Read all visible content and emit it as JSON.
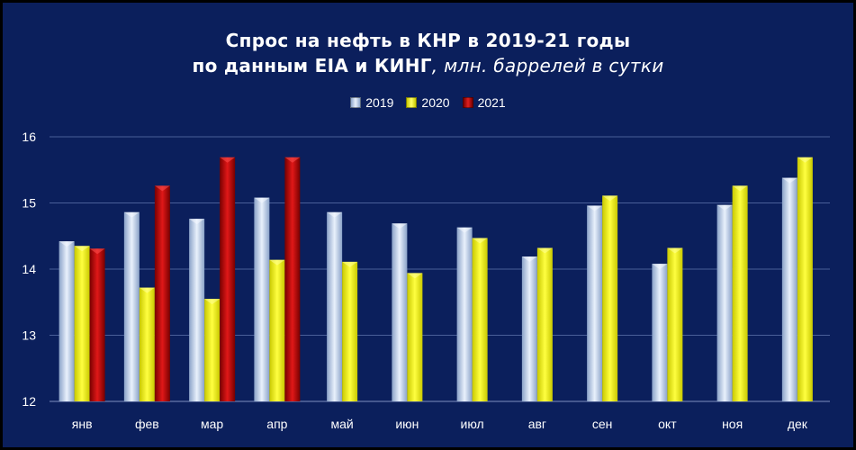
{
  "colors": {
    "background": "#0b1f5c",
    "gridline": "#4a5f99",
    "series_2019": "#c5d7ef",
    "series_2020": "#ffff00",
    "series_2021": "#cc0000"
  },
  "chart_data": {
    "type": "bar",
    "title_line1": "Спрос на нефть в КНР в 2019-21 годы",
    "title_line2": "по данным EIA и КИНГ",
    "title_unit": ", млн. баррелей в сутки",
    "categories": [
      "янв",
      "фев",
      "мар",
      "апр",
      "май",
      "июн",
      "июл",
      "авг",
      "сен",
      "окт",
      "ноя",
      "дек"
    ],
    "series": [
      {
        "name": "2019",
        "values": [
          14.42,
          14.86,
          14.76,
          15.08,
          14.86,
          14.69,
          14.63,
          14.19,
          14.96,
          14.08,
          14.97,
          15.38
        ]
      },
      {
        "name": "2020",
        "values": [
          14.35,
          13.72,
          13.55,
          14.14,
          14.11,
          13.94,
          14.47,
          14.32,
          15.11,
          14.32,
          15.26,
          15.69
        ]
      },
      {
        "name": "2021",
        "values": [
          14.31,
          15.26,
          15.69,
          15.69,
          null,
          null,
          null,
          null,
          null,
          null,
          null,
          null
        ]
      }
    ],
    "ylim": [
      12,
      16
    ],
    "yticks": [
      "12",
      "13",
      "14",
      "15",
      "16"
    ],
    "grid": true,
    "legend_position": "top-center"
  }
}
